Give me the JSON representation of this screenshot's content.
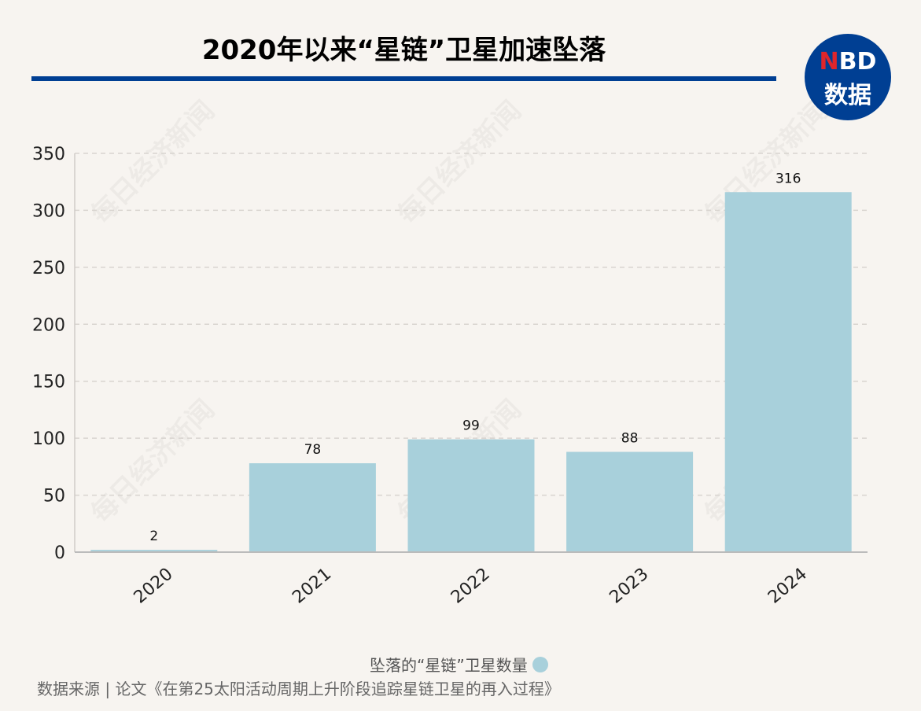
{
  "header": {
    "title": "2020年以来“星链”卫星加速坠落"
  },
  "logo": {
    "line1_accent": "N",
    "line1_rest": "BD",
    "line2": "数据"
  },
  "watermark": "每日经济新闻",
  "colors": {
    "bar": "#a8d0db",
    "accent": "#003f93",
    "background": "#f7f4f0"
  },
  "chart_data": {
    "type": "bar",
    "categories": [
      "2020",
      "2021",
      "2022",
      "2023",
      "2024"
    ],
    "series": [
      {
        "name": "坠落的“星链”卫星数量",
        "values": [
          2,
          78,
          99,
          88,
          316
        ]
      }
    ],
    "ylim": [
      0,
      350
    ],
    "yticks": [
      0,
      50,
      100,
      150,
      200,
      250,
      300,
      350
    ],
    "grid": true,
    "legend": "bottom",
    "data_labels": true
  },
  "footer": {
    "source": "数据来源 | 论文《在第25太阳活动周期上升阶段追踪星链卫星的再入过程》"
  }
}
